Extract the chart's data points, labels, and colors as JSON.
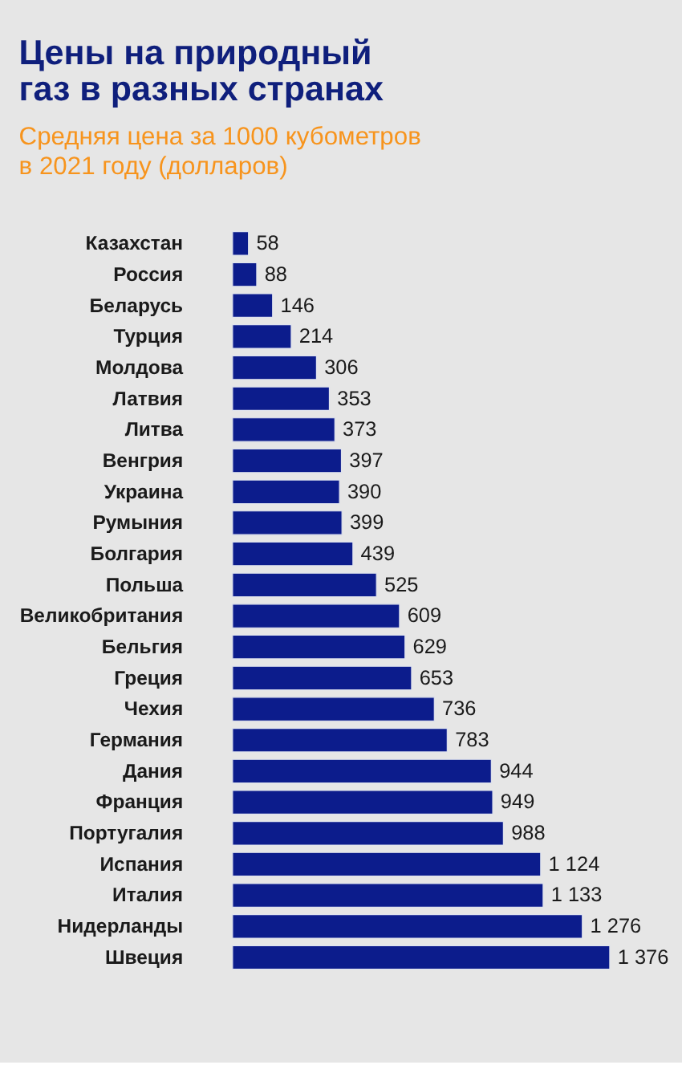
{
  "chart_data": {
    "type": "bar",
    "orientation": "horizontal",
    "title": "Цены на природный газ в разных странах",
    "subtitle": "Средняя цена за 1000 кубометров в 2021 году (долларов)",
    "categories": [
      "Казахстан",
      "Россия",
      "Беларусь",
      "Турция",
      "Молдова",
      "Латвия",
      "Литва",
      "Венгрия",
      "Украина",
      "Румыния",
      "Болгария",
      "Польша",
      "Великобритания",
      "Бельгия",
      "Греция",
      "Чехия",
      "Германия",
      "Дания",
      "Франция",
      "Португалия",
      "Испания",
      "Италия",
      "Нидерланды",
      "Швеция"
    ],
    "values": [
      58,
      88,
      146,
      214,
      306,
      353,
      373,
      397,
      390,
      399,
      439,
      525,
      609,
      629,
      653,
      736,
      783,
      944,
      949,
      988,
      1124,
      1133,
      1276,
      1376
    ],
    "value_labels": [
      "58",
      "88",
      "146",
      "214",
      "306",
      "353",
      "373",
      "397",
      "390",
      "399",
      "439",
      "525",
      "609",
      "629",
      "653",
      "736",
      "783",
      "944",
      "949",
      "988",
      "1 124",
      "1 133",
      "1 276",
      "1 376"
    ],
    "color": "#0c1c8c",
    "tick_labels": "y"
  }
}
